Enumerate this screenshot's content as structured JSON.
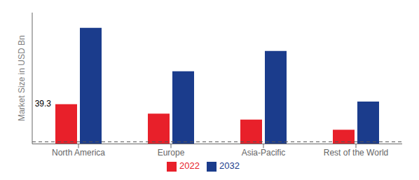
{
  "chart_data": {
    "type": "bar",
    "categories": [
      "North America",
      "Europe",
      "Asia-Pacific",
      "Rest of the World"
    ],
    "series": [
      {
        "name": "2022",
        "color": "#e8202a",
        "values": [
          39.3,
          30.0,
          24.0,
          14.0
        ]
      },
      {
        "name": "2032",
        "color": "#1b3c8c",
        "values": [
          115.0,
          72.0,
          92.0,
          42.0
        ]
      }
    ],
    "ylabel": "Market Size in USD Bn",
    "ylim": [
      0,
      130
    ],
    "yticks": [],
    "tick_labels": "x",
    "grid": false,
    "legend": "bottom",
    "reference_lines": [
      {
        "y": 2,
        "line_style": "dashed"
      }
    ],
    "annotations": [
      {
        "text": "39.3",
        "x": "North America",
        "series": "2022",
        "y": 39.3
      }
    ]
  }
}
